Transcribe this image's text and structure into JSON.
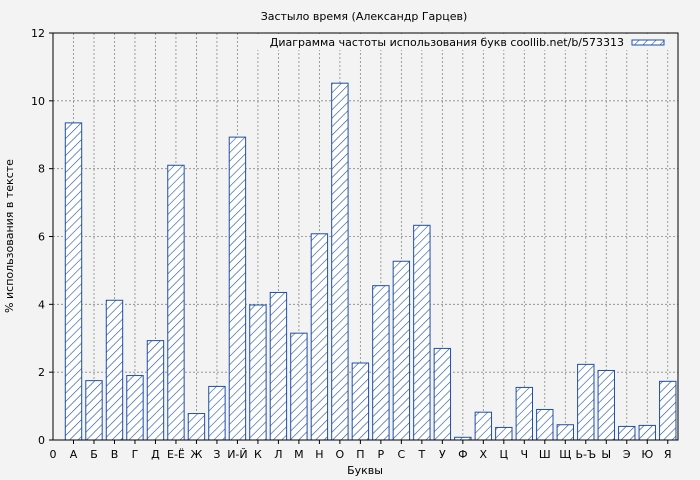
{
  "chart_data": {
    "type": "bar",
    "title": "Застыло время (Александр Гарцев)",
    "xlabel": "Буквы",
    "ylabel": "% использования в тексте",
    "legend": {
      "label": "Диаграмма частоты использования букв coollib.net/b/573313",
      "placement": "top-right"
    },
    "x_origin_label": "0",
    "categories": [
      "А",
      "Б",
      "В",
      "Г",
      "Д",
      "Е-Ё",
      "Ж",
      "З",
      "И-Й",
      "К",
      "Л",
      "М",
      "Н",
      "О",
      "П",
      "Р",
      "С",
      "Т",
      "У",
      "Ф",
      "Х",
      "Ц",
      "Ч",
      "Ш",
      "Щ",
      "Ь-Ъ",
      "Ы",
      "Э",
      "Ю",
      "Я"
    ],
    "values": [
      9.35,
      1.75,
      4.12,
      1.9,
      2.93,
      8.1,
      0.78,
      1.58,
      8.93,
      3.98,
      4.35,
      3.15,
      6.08,
      10.52,
      2.27,
      4.55,
      5.27,
      6.33,
      2.7,
      0.08,
      0.82,
      0.37,
      1.55,
      0.9,
      0.45,
      2.23,
      2.05,
      0.4,
      0.43,
      1.73
    ],
    "ylim": [
      0,
      12
    ],
    "yticks": [
      0,
      2,
      4,
      6,
      8,
      10,
      12
    ],
    "grid": true,
    "colors": {
      "bar_stroke": "#1f4fa8",
      "background": "#f3f3f3"
    }
  }
}
